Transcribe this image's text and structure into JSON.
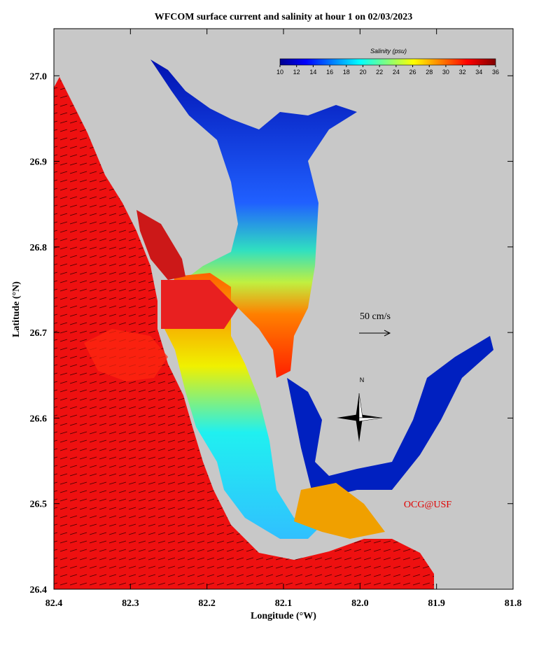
{
  "title": "WFCOM surface current and salinity at hour 1 on 02/03/2023",
  "map": {
    "xlabel": "Longitude (°W)",
    "ylabel": "Latitude (°N)",
    "xlim": [
      82.4,
      81.8
    ],
    "ylim": [
      26.4,
      27.055
    ],
    "xticks": [
      82.4,
      82.3,
      82.2,
      82.1,
      {
        "value": 82.0,
        "label": "82.0"
      },
      81.9,
      81.8
    ],
    "yticks": [
      26.4,
      26.5,
      26.6,
      26.7,
      26.8,
      26.9,
      {
        "value": 27.0,
        "label": "27.0"
      }
    ],
    "colorbar": {
      "title": "Salinity (psu)",
      "lim": [
        10,
        36
      ],
      "ticks": [
        10,
        12,
        14,
        16,
        18,
        20,
        22,
        24,
        26,
        28,
        30,
        32,
        34,
        36
      ]
    },
    "scale_label": "50 cm/s",
    "north_label": "N",
    "credit": "OCG@USF"
  }
}
